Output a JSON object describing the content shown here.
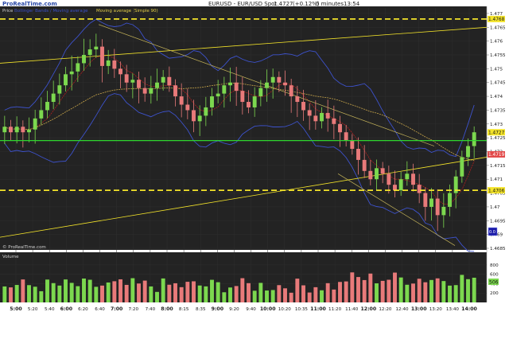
{
  "header": {
    "brand": "ProRealTime.com",
    "instrument_line": "EURUSD - EUR/USD Spot",
    "price": "1.4727",
    "change": "(+0.12%)",
    "timeframe": "5 minutes",
    "clock": "13:54"
  },
  "price_panel": {
    "label": "Price",
    "legend_left": "Bollinger Bands / Moving average",
    "legend_main": "Moving average (Simple 90)",
    "price_tag": "1.4727",
    "level_tags": [
      "1.4768",
      "1.4706",
      "1.4719"
    ],
    "y_ticks": [
      "1.477",
      "1.4765",
      "1.476",
      "1.4755",
      "1.475",
      "1.4745",
      "1.474",
      "1.4735",
      "1.473",
      "1.4725",
      "1.472",
      "1.4715",
      "1.471",
      "1.4705",
      "1.47",
      "1.4695",
      "1.469",
      "1.4685"
    ],
    "footer_brand": "© ProRealTime.com",
    "small_box": "0.0"
  },
  "volume_panel": {
    "label": "Volume",
    "y_ticks": [
      "800",
      "600",
      "400",
      "200"
    ],
    "tag": "506"
  },
  "time_axis": {
    "labels": [
      "5:00",
      "5:20",
      "5:40",
      "6:00",
      "6:20",
      "6:40",
      "7:00",
      "7:20",
      "7:40",
      "8:00",
      "8:15",
      "8:35",
      "9:00",
      "9:20",
      "9:40",
      "10:00",
      "10:20",
      "10:35",
      "11:00",
      "11:20",
      "11:40",
      "12:00",
      "12:20",
      "12:40",
      "13:00",
      "13:20",
      "13:40",
      "14:00"
    ]
  },
  "colors": {
    "up": "#7cd84f",
    "down": "#e87a7a",
    "horizontal_yellow": "#f4e42a",
    "support_green": "#2ed62e",
    "trendline": "#c7b55a",
    "ma90": "#c9a64a",
    "bb": "#3d52cc",
    "ma_red": "#b01f1f"
  },
  "chart_data": {
    "type": "candlestick",
    "title": "EURUSD - EUR/USD Spot",
    "timeframe": "5 minutes",
    "last_price": 1.4727,
    "horizontal_levels": [
      1.4768,
      1.4706
    ],
    "support_level": 1.4724,
    "ylim": [
      1.4685,
      1.4772
    ],
    "closes": [
      1.4729,
      1.4727,
      1.4729,
      1.4727,
      1.4728,
      1.4732,
      1.4735,
      1.4738,
      1.4741,
      1.4744,
      1.4748,
      1.4749,
      1.4752,
      1.4755,
      1.4757,
      1.4758,
      1.4751,
      1.4753,
      1.475,
      1.4748,
      1.4745,
      1.4746,
      1.4743,
      1.4741,
      1.4743,
      1.4745,
      1.4747,
      1.4744,
      1.474,
      1.4737,
      1.4735,
      1.4731,
      1.4733,
      1.4736,
      1.474,
      1.4741,
      1.4744,
      1.4745,
      1.4742,
      1.4738,
      1.4736,
      1.474,
      1.4743,
      1.4745,
      1.4747,
      1.4745,
      1.4744,
      1.474,
      1.4738,
      1.4735,
      1.4733,
      1.4731,
      1.4734,
      1.4732,
      1.473,
      1.4727,
      1.4724,
      1.4721,
      1.4717,
      1.4713,
      1.471,
      1.4714,
      1.4712,
      1.4708,
      1.4706,
      1.471,
      1.4712,
      1.4708,
      1.4705,
      1.47,
      1.4703,
      1.4697,
      1.47,
      1.4705,
      1.4711,
      1.4718,
      1.4722,
      1.4727
    ],
    "volume_ylim": [
      0,
      900
    ]
  }
}
